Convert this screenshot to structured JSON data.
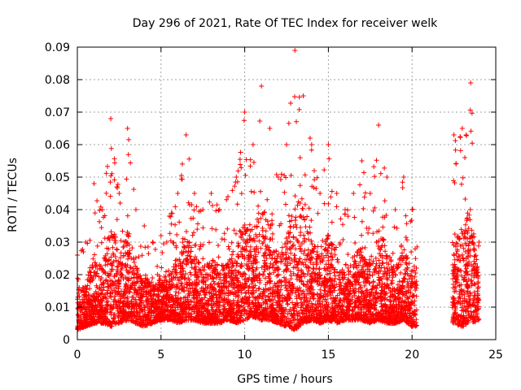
{
  "chart_data": {
    "type": "scatter",
    "title": "Day 296 of 2021, Rate Of TEC Index for receiver welk",
    "xlabel": "GPS time / hours",
    "ylabel": "ROTI / TECUs",
    "xlim": [
      0,
      25
    ],
    "ylim": [
      0,
      0.09
    ],
    "x_ticks": [
      0,
      5,
      10,
      15,
      20,
      25
    ],
    "y_ticks": [
      0,
      0.01,
      0.02,
      0.03,
      0.04,
      0.05,
      0.06,
      0.07,
      0.08,
      0.09
    ],
    "grid": true,
    "marker": "+",
    "color": "#ff0000",
    "data_gaps_hours": [
      [
        20.3,
        22.4
      ]
    ],
    "envelope": {
      "x": [
        0,
        0.5,
        1,
        1.5,
        2,
        2.5,
        3,
        3.5,
        4,
        4.5,
        5,
        5.5,
        6,
        6.5,
        7,
        7.5,
        8,
        8.5,
        9,
        9.5,
        10,
        10.5,
        11,
        11.5,
        12,
        12.5,
        13,
        13.5,
        14,
        14.5,
        15,
        15.5,
        16,
        16.5,
        17,
        17.5,
        18,
        18.5,
        19,
        19.5,
        20,
        22.5,
        23,
        23.5,
        24
      ],
      "y_max": [
        0.026,
        0.03,
        0.048,
        0.04,
        0.068,
        0.045,
        0.065,
        0.04,
        0.035,
        0.03,
        0.032,
        0.038,
        0.045,
        0.063,
        0.045,
        0.04,
        0.045,
        0.04,
        0.044,
        0.05,
        0.07,
        0.06,
        0.078,
        0.065,
        0.05,
        0.06,
        0.089,
        0.075,
        0.06,
        0.045,
        0.06,
        0.045,
        0.04,
        0.045,
        0.055,
        0.045,
        0.066,
        0.05,
        0.04,
        0.05,
        0.04,
        0.063,
        0.065,
        0.079,
        0.03
      ],
      "y_min": [
        0.003,
        0.004,
        0.005,
        0.005,
        0.004,
        0.005,
        0.006,
        0.005,
        0.004,
        0.005,
        0.006,
        0.006,
        0.005,
        0.006,
        0.006,
        0.005,
        0.005,
        0.005,
        0.006,
        0.005,
        0.006,
        0.007,
        0.006,
        0.006,
        0.005,
        0.004,
        0.003,
        0.005,
        0.006,
        0.005,
        0.006,
        0.005,
        0.006,
        0.006,
        0.006,
        0.005,
        0.006,
        0.005,
        0.005,
        0.006,
        0.004,
        0.005,
        0.004,
        0.005,
        0.006
      ]
    }
  }
}
